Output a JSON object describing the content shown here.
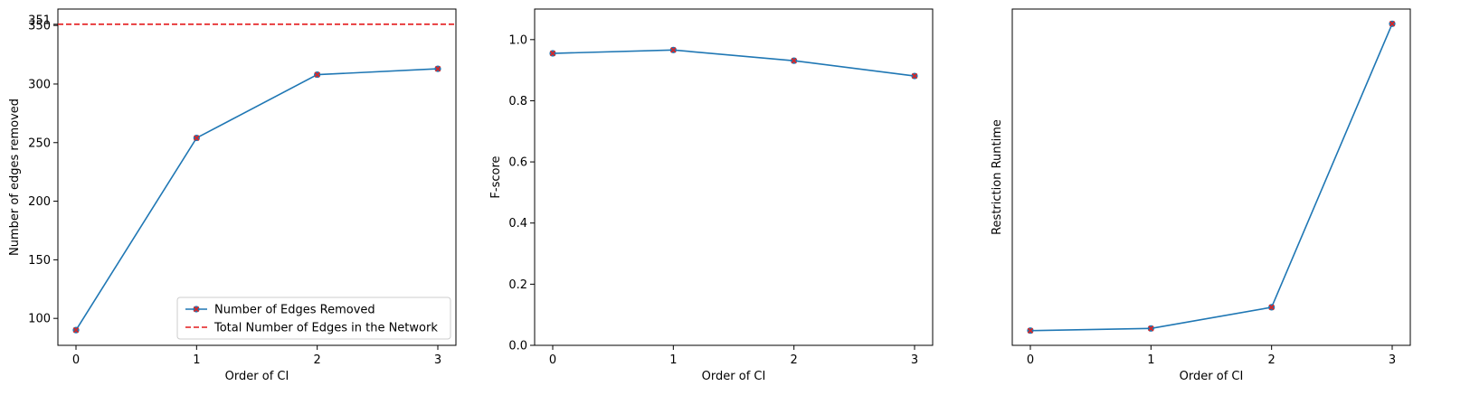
{
  "chart_data": [
    {
      "type": "line",
      "xlabel": "Order of CI",
      "ylabel": "Number of edges removed",
      "x": [
        0,
        1,
        2,
        3
      ],
      "xticks": [
        "0",
        "1",
        "2",
        "3"
      ],
      "xlim": [
        -0.15,
        3.15
      ],
      "ylim": [
        77,
        364
      ],
      "yticks": [
        100,
        150,
        200,
        250,
        300,
        350
      ],
      "yticks_text": [
        "100",
        "150",
        "200",
        "250",
        "300",
        "350"
      ],
      "extra_ytick": 351,
      "extra_ytick_text": "351",
      "series": [
        {
          "name": "Number of Edges Removed",
          "values": [
            90,
            254,
            308,
            313
          ],
          "color": "#1f77b4",
          "marker": "X",
          "marker_color": "#d62728"
        }
      ],
      "hlines": [
        {
          "name": "Total Number of Edges in the Network",
          "value": 351,
          "color": "#e41a1c",
          "style": "dashed"
        }
      ],
      "legend": {
        "position": "lower-right",
        "entries": [
          "Number of Edges Removed",
          "Total Number of Edges in the Network"
        ]
      }
    },
    {
      "type": "line",
      "xlabel": "Order of CI",
      "ylabel": "F-score",
      "x": [
        0,
        1,
        2,
        3
      ],
      "xticks": [
        "0",
        "1",
        "2",
        "3"
      ],
      "xlim": [
        -0.15,
        3.15
      ],
      "ylim": [
        0.0,
        1.1
      ],
      "yticks": [
        0.0,
        0.2,
        0.4,
        0.6,
        0.8,
        1.0
      ],
      "yticks_text": [
        "0.0",
        "0.2",
        "0.4",
        "0.6",
        "0.8",
        "1.0"
      ],
      "series": [
        {
          "name": "F-score",
          "values": [
            0.955,
            0.966,
            0.931,
            0.881
          ],
          "color": "#1f77b4",
          "marker": "X",
          "marker_color": "#d62728"
        }
      ]
    },
    {
      "type": "line",
      "xlabel": "Order of CI",
      "ylabel": "Restriction Runtime",
      "x": [
        0,
        1,
        2,
        3
      ],
      "xticks": [
        "0",
        "1",
        "2",
        "3"
      ],
      "xlim": [
        -0.15,
        3.15
      ],
      "ylim": [
        -0.048,
        1.048
      ],
      "yticks": [],
      "yticks_text": [],
      "series": [
        {
          "name": "Restriction Runtime",
          "values": [
            0.0,
            0.007,
            0.076,
            1.0
          ],
          "color": "#1f77b4",
          "marker": "X",
          "marker_color": "#d62728"
        }
      ]
    }
  ]
}
